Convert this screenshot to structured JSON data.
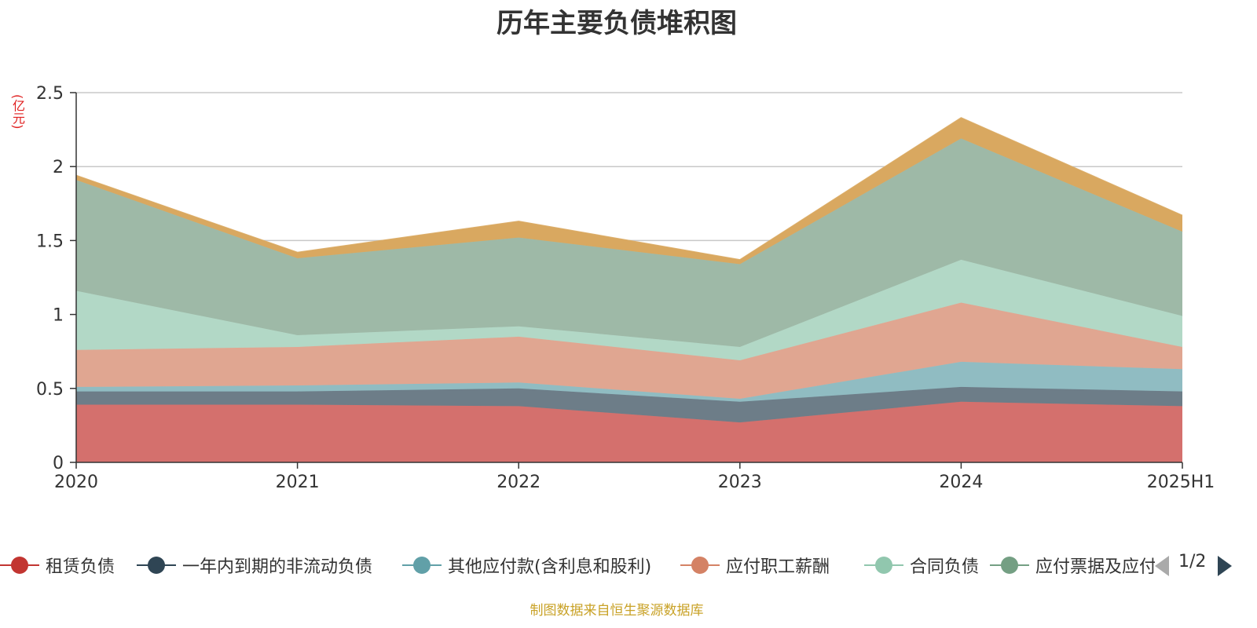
{
  "chart_data": {
    "type": "area",
    "stacked": true,
    "title": "历年主要负债堆积图",
    "unit_label": "(亿元)",
    "categories": [
      "2020",
      "2021",
      "2022",
      "2023",
      "2024",
      "2025H1"
    ],
    "ylim": [
      0,
      2.5
    ],
    "yticks": [
      "0",
      "0.5",
      "1",
      "1.5",
      "2",
      "2.5"
    ],
    "grid": true,
    "legend_position": "bottom",
    "series": [
      {
        "name": "租赁负债",
        "color": "#c23531",
        "fill": "#d4706d",
        "values": [
          0.39,
          0.39,
          0.38,
          0.27,
          0.41,
          0.38
        ]
      },
      {
        "name": "一年内到期的非流动负债",
        "color": "#2f4554",
        "fill": "#6d7d88",
        "values": [
          0.09,
          0.09,
          0.12,
          0.14,
          0.1,
          0.1
        ]
      },
      {
        "name": "其他应付款(含利息和股利)",
        "color": "#61a0a8",
        "fill": "#90bcc2",
        "values": [
          0.03,
          0.04,
          0.04,
          0.02,
          0.17,
          0.15
        ]
      },
      {
        "name": "应付职工薪酬",
        "color": "#d48265",
        "fill": "#e0a691",
        "values": [
          0.25,
          0.26,
          0.31,
          0.26,
          0.4,
          0.15
        ]
      },
      {
        "name": "合同负债",
        "color": "#91c7ae",
        "fill": "#b2d8c6",
        "values": [
          0.4,
          0.08,
          0.07,
          0.09,
          0.29,
          0.21
        ]
      },
      {
        "name": "应付票据及应付账款",
        "color": "#749f83",
        "fill": "#9eb9a7",
        "values": [
          0.75,
          0.52,
          0.6,
          0.56,
          0.82,
          0.57
        ]
      },
      {
        "name": "",
        "color": "#ca8622",
        "fill": "#d9a860",
        "values": [
          0.03,
          0.04,
          0.11,
          0.03,
          0.14,
          0.11
        ]
      }
    ]
  },
  "legend": {
    "page_indicator": "1/2",
    "visible_labels": [
      "租赁负债",
      "一年内到期的非流动负债",
      "其他应付款(含利息和股利)",
      "应付职工薪酬",
      "合同负债",
      "应付票据及应付账款"
    ]
  },
  "source_note": "制图数据来自恒生聚源数据库"
}
